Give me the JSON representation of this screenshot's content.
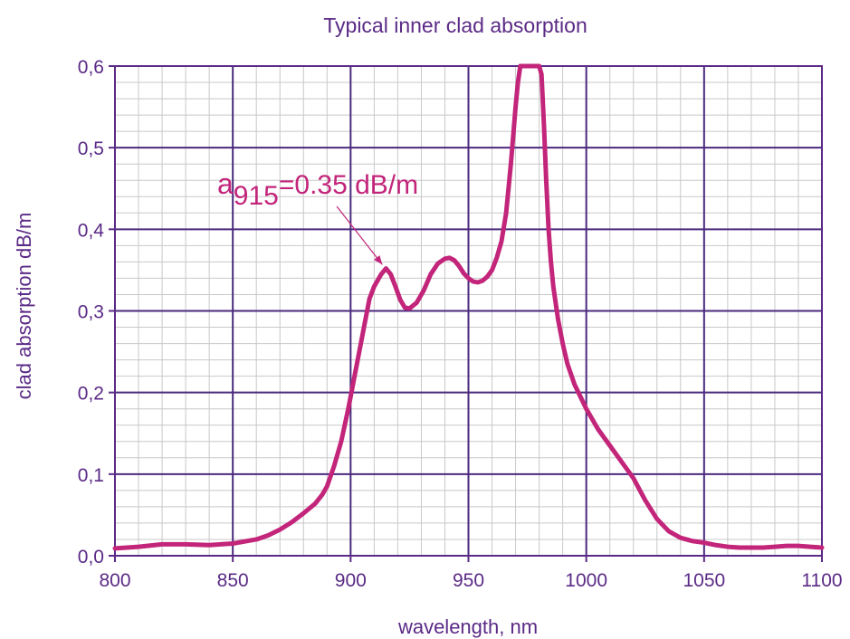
{
  "chart_data": {
    "type": "line",
    "title": "Typical inner clad absorption",
    "xlabel": "wavelength, nm",
    "ylabel": "clad absorption dB/m",
    "xlim": [
      800,
      1100
    ],
    "ylim": [
      0.0,
      0.6
    ],
    "x_ticks": [
      800,
      850,
      900,
      950,
      1000,
      1050,
      1100
    ],
    "y_ticks": [
      0.0,
      0.1,
      0.2,
      0.3,
      0.4,
      0.5,
      0.6
    ],
    "x_tick_labels": [
      "800",
      "850",
      "900",
      "950",
      "1000",
      "1050",
      "1100"
    ],
    "y_tick_labels": [
      "0,0",
      "0,1",
      "0,2",
      "0,3",
      "0,4",
      "0,5",
      "0,6"
    ],
    "grid": true,
    "minor_grid": true,
    "annotation": {
      "symbol": "a",
      "subscript": "915",
      "text": "=0.35 dB/m",
      "points_to": {
        "x": 915,
        "y": 0.35
      }
    },
    "colors": {
      "line": "#c2257a",
      "axis": "#5b2a86",
      "major_grid": "#4b2a7e",
      "minor_grid": "#c8c8c8",
      "text": "#5b2a86"
    },
    "series": [
      {
        "x": [
          800,
          810,
          820,
          830,
          840,
          850,
          860,
          865,
          870,
          875,
          880,
          885,
          888,
          890,
          893,
          896,
          899,
          902,
          905,
          908,
          910,
          912,
          913,
          915,
          917,
          919,
          921,
          923,
          925,
          928,
          931,
          934,
          937,
          940,
          942,
          944,
          946,
          948,
          950,
          952,
          954,
          956,
          958,
          960,
          962,
          964,
          966,
          968,
          970,
          971,
          972,
          972.5,
          973,
          974,
          975,
          976,
          977,
          978,
          979,
          980,
          981,
          982,
          983,
          984,
          985,
          986,
          988,
          990,
          992,
          995,
          998,
          1000,
          1005,
          1010,
          1015,
          1020,
          1025,
          1030,
          1035,
          1040,
          1045,
          1050,
          1055,
          1060,
          1065,
          1070,
          1075,
          1080,
          1085,
          1090,
          1095,
          1100
        ],
        "y": [
          0.009,
          0.011,
          0.014,
          0.014,
          0.013,
          0.015,
          0.02,
          0.025,
          0.032,
          0.041,
          0.052,
          0.064,
          0.075,
          0.085,
          0.11,
          0.14,
          0.18,
          0.225,
          0.27,
          0.315,
          0.33,
          0.34,
          0.345,
          0.352,
          0.345,
          0.33,
          0.314,
          0.304,
          0.303,
          0.31,
          0.325,
          0.345,
          0.358,
          0.364,
          0.365,
          0.362,
          0.355,
          0.346,
          0.34,
          0.336,
          0.335,
          0.337,
          0.342,
          0.35,
          0.365,
          0.385,
          0.42,
          0.48,
          0.55,
          0.58,
          0.6,
          0.6,
          0.6,
          0.6,
          0.6,
          0.6,
          0.6,
          0.6,
          0.6,
          0.6,
          0.59,
          0.53,
          0.46,
          0.4,
          0.36,
          0.33,
          0.29,
          0.26,
          0.235,
          0.21,
          0.192,
          0.18,
          0.155,
          0.135,
          0.115,
          0.095,
          0.068,
          0.045,
          0.03,
          0.022,
          0.018,
          0.016,
          0.013,
          0.011,
          0.01,
          0.01,
          0.01,
          0.011,
          0.012,
          0.012,
          0.011,
          0.01
        ]
      }
    ]
  }
}
